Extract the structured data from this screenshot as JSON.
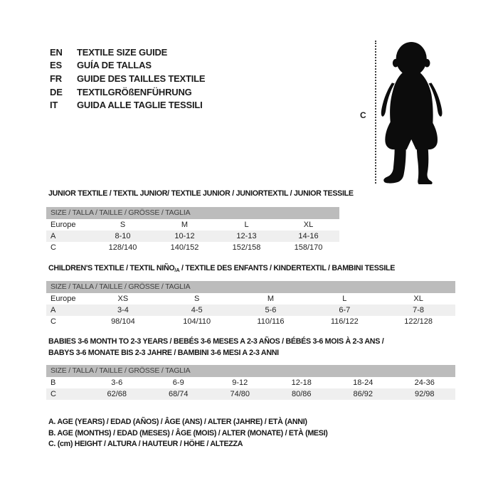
{
  "languages": [
    {
      "code": "EN",
      "label": "TEXTILE SIZE GUIDE"
    },
    {
      "code": "ES",
      "label": "GUÍA DE TALLAS"
    },
    {
      "code": "FR",
      "label": "GUIDE DES TAILLES TEXTILE"
    },
    {
      "code": "DE",
      "label": "TEXTILGRÖßENFÜHRUNG"
    },
    {
      "code": "IT",
      "label": "GUIDA ALLE TAGLIE TESSILI"
    }
  ],
  "figure": {
    "measure_label": "C"
  },
  "size_bar_label": "SIZE / TALLA / TAILLE / GRÖSSE / TAGLIA",
  "sections": [
    {
      "heading": "JUNIOR TEXTILE / TEXTIL JUNIOR/ TEXTILE JUNIOR / JUNIORTEXTIL / JUNIOR TESSILE",
      "rows": [
        {
          "label": "Europe",
          "shaded": false,
          "cells": [
            "S",
            "M",
            "L",
            "XL"
          ]
        },
        {
          "label": "A",
          "shaded": true,
          "cells": [
            "8-10",
            "10-12",
            "12-13",
            "14-16"
          ]
        },
        {
          "label": "C",
          "shaded": false,
          "cells": [
            "128/140",
            "140/152",
            "152/158",
            "158/170"
          ]
        }
      ]
    },
    {
      "heading_pre": "CHILDREN'S TEXTILE / TEXTIL NIÑO",
      "heading_sub": "/A",
      "heading_post": " / TEXTILE DES ENFANTS / KINDERTEXTIL / BAMBINI TESSILE",
      "rows": [
        {
          "label": "Europe",
          "shaded": false,
          "cells": [
            "XS",
            "S",
            "M",
            "L",
            "XL"
          ]
        },
        {
          "label": "A",
          "shaded": true,
          "cells": [
            "3-4",
            "4-5",
            "5-6",
            "6-7",
            "7-8"
          ]
        },
        {
          "label": "C",
          "shaded": false,
          "cells": [
            "98/104",
            "104/110",
            "110/116",
            "116/122",
            "122/128"
          ]
        }
      ]
    },
    {
      "heading_line1": "BABIES 3-6 MONTH TO 2-3 YEARS / BEBÉS 3-6 MESES A 2-3 AÑOS / BÉBÉS 3-6 MOIS À 2-3 ANS /",
      "heading_line2": "BABYS 3-6 MONATE BIS 2-3 JAHRE / BAMBINI 3-6 MESI A 2-3 ANNI",
      "rows": [
        {
          "label": "B",
          "shaded": false,
          "cells": [
            "3-6",
            "6-9",
            "9-12",
            "12-18",
            "18-24",
            "24-36"
          ]
        },
        {
          "label": "C",
          "shaded": true,
          "cells": [
            "62/68",
            "68/74",
            "74/80",
            "80/86",
            "86/92",
            "92/98"
          ]
        }
      ]
    }
  ],
  "notes": [
    "A. AGE (YEARS) / EDAD (AÑOS) / ÂGE (ANS) / ALTER (JAHRE) / ETÀ (ANNI)",
    "B. AGE (MONTHS) / EDAD (MESES) / ÂGE (MOIS) / ALTER (MONATE) / ETÀ (MESI)",
    "C. (cm) HEIGHT / ALTURA / HAUTEUR / HÖHE / ALTEZZA"
  ],
  "colors": {
    "bar_bg": "#bcbcbc",
    "row_shaded": "#efefef",
    "silhouette": "#0c0c0c",
    "text": "#1d1d1d"
  }
}
